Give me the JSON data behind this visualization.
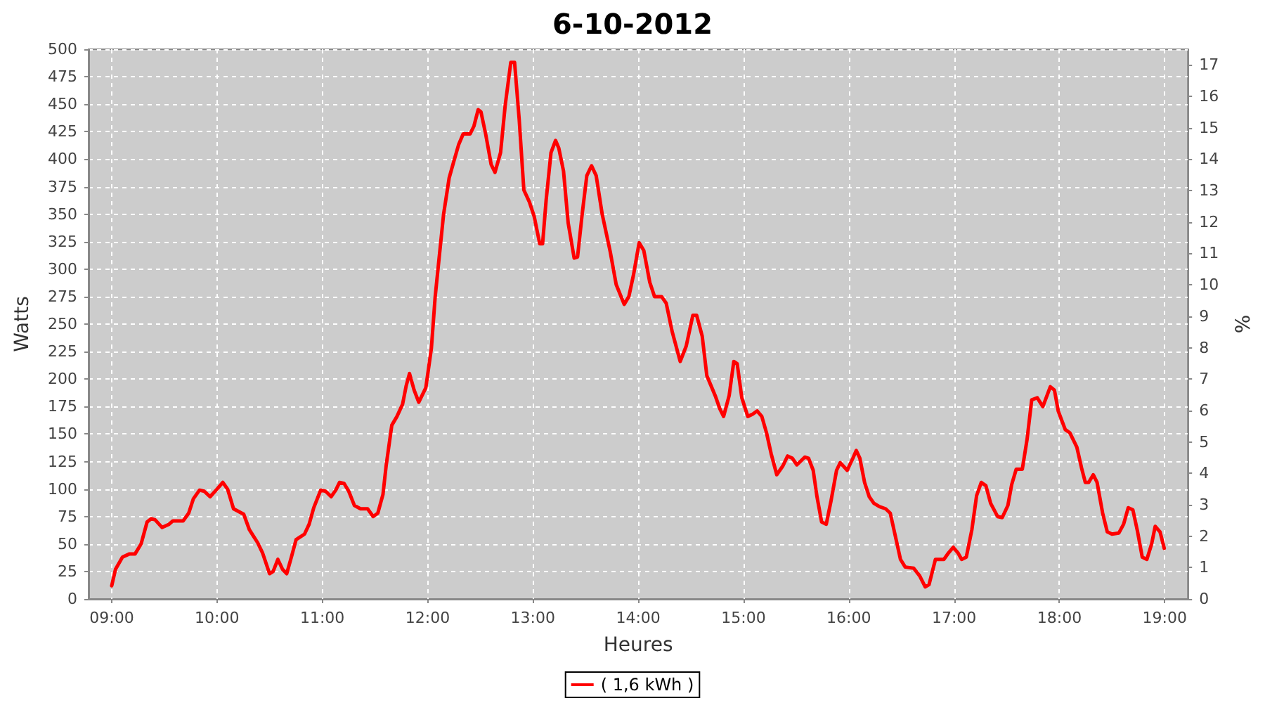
{
  "chart_data": {
    "type": "line",
    "title": "6-10-2012",
    "xlabel": "Heures",
    "ylabel": "Watts",
    "y2label": "%",
    "xlim": [
      8.78,
      19.22
    ],
    "xticks": [
      {
        "value": 9,
        "label": "09:00"
      },
      {
        "value": 10,
        "label": "10:00"
      },
      {
        "value": 11,
        "label": "11:00"
      },
      {
        "value": 12,
        "label": "12:00"
      },
      {
        "value": 13,
        "label": "13:00"
      },
      {
        "value": 14,
        "label": "14:00"
      },
      {
        "value": 15,
        "label": "15:00"
      },
      {
        "value": 16,
        "label": "16:00"
      },
      {
        "value": 17,
        "label": "17:00"
      },
      {
        "value": 18,
        "label": "18:00"
      },
      {
        "value": 19,
        "label": "19:00"
      }
    ],
    "ylim": [
      0,
      500
    ],
    "yticks": [
      0,
      25,
      50,
      75,
      100,
      125,
      150,
      175,
      200,
      225,
      250,
      275,
      300,
      325,
      350,
      375,
      400,
      425,
      450,
      475,
      500
    ],
    "y2lim": [
      0,
      17.5
    ],
    "y2ticks": [
      0,
      1,
      2,
      3,
      4,
      5,
      6,
      7,
      8,
      9,
      10,
      11,
      12,
      13,
      14,
      15,
      16,
      17
    ],
    "grid": true,
    "legend": "bottom",
    "marker": "none",
    "line_style": "solid",
    "series": [
      {
        "name": "( 1,6 kWh )",
        "color": "#ff0000",
        "x": [
          9.0,
          9.036,
          9.102,
          9.169,
          9.222,
          9.279,
          9.336,
          9.376,
          9.412,
          9.479,
          9.545,
          9.581,
          9.678,
          9.731,
          9.775,
          9.834,
          9.878,
          9.935,
          10.001,
          10.055,
          10.1,
          10.157,
          10.254,
          10.307,
          10.387,
          10.432,
          10.499,
          10.533,
          10.578,
          10.622,
          10.662,
          10.706,
          10.751,
          10.831,
          10.875,
          10.919,
          10.985,
          11.031,
          11.084,
          11.128,
          11.164,
          11.207,
          11.251,
          11.305,
          11.363,
          11.43,
          11.483,
          11.527,
          11.576,
          11.606,
          11.66,
          11.709,
          11.762,
          11.797,
          11.828,
          11.872,
          11.916,
          11.983,
          12.036,
          12.072,
          12.102,
          12.152,
          12.205,
          12.249,
          12.294,
          12.338,
          12.404,
          12.44,
          12.48,
          12.507,
          12.551,
          12.604,
          12.64,
          12.693,
          12.737,
          12.79,
          12.826,
          12.87,
          12.914,
          12.967,
          13.012,
          13.065,
          13.092,
          13.126,
          13.172,
          13.215,
          13.246,
          13.291,
          13.335,
          13.392,
          13.424,
          13.468,
          13.512,
          13.557,
          13.601,
          13.658,
          13.734,
          13.791,
          13.867,
          13.911,
          13.956,
          14.009,
          14.053,
          14.11,
          14.155,
          14.222,
          14.266,
          14.323,
          14.399,
          14.456,
          14.519,
          14.555,
          14.608,
          14.652,
          14.731,
          14.775,
          14.811,
          14.864,
          14.908,
          14.94,
          14.984,
          15.041,
          15.086,
          15.13,
          15.174,
          15.219,
          15.263,
          15.316,
          15.374,
          15.419,
          15.463,
          15.507,
          15.582,
          15.618,
          15.662,
          15.698,
          15.742,
          15.786,
          15.831,
          15.884,
          15.919,
          15.985,
          16.039,
          16.071,
          16.105,
          16.15,
          16.194,
          16.238,
          16.291,
          16.35,
          16.394,
          16.438,
          16.491,
          16.536,
          16.616,
          16.673,
          16.726,
          16.762,
          16.823,
          16.903,
          16.948,
          16.992,
          17.036,
          17.072,
          17.116,
          17.169,
          17.214,
          17.258,
          17.302,
          17.347,
          17.413,
          17.457,
          17.511,
          17.547,
          17.59,
          17.648,
          17.693,
          17.737,
          17.79,
          17.843,
          17.914,
          17.953,
          17.989,
          18.056,
          18.1,
          18.166,
          18.211,
          18.246,
          18.278,
          18.322,
          18.358,
          18.411,
          18.455,
          18.499,
          18.565,
          18.61,
          18.654,
          18.698,
          18.743,
          18.787,
          18.831,
          18.876,
          18.91,
          18.956,
          18.996
        ],
        "values": [
          12,
          27,
          38,
          41,
          41,
          50,
          70,
          73,
          72,
          65,
          68,
          71,
          71,
          78,
          91,
          99,
          98,
          93,
          100,
          106,
          100,
          82,
          77,
          63,
          51,
          42,
          23,
          25,
          36,
          27,
          23,
          38,
          54,
          59,
          68,
          83,
          99,
          98,
          93,
          99,
          106,
          105,
          98,
          85,
          82,
          82,
          75,
          78,
          95,
          121,
          158,
          166,
          177,
          194,
          205,
          190,
          179,
          192,
          228,
          275,
          303,
          350,
          383,
          398,
          413,
          423,
          423,
          430,
          445,
          443,
          423,
          395,
          388,
          406,
          449,
          488,
          488,
          436,
          372,
          361,
          348,
          323,
          323,
          363,
          406,
          417,
          410,
          389,
          342,
          310,
          311,
          350,
          385,
          394,
          385,
          350,
          316,
          286,
          268,
          275,
          295,
          324,
          317,
          288,
          275,
          275,
          269,
          243,
          216,
          230,
          258,
          258,
          239,
          203,
          185,
          173,
          166,
          185,
          216,
          214,
          183,
          166,
          168,
          171,
          166,
          151,
          132,
          113,
          121,
          130,
          128,
          122,
          129,
          128,
          117,
          93,
          70,
          68,
          89,
          117,
          124,
          117,
          128,
          135,
          128,
          106,
          93,
          87,
          84,
          82,
          78,
          59,
          36,
          29,
          28,
          21,
          11,
          13,
          36,
          36,
          42,
          47,
          42,
          36,
          38,
          63,
          94,
          106,
          103,
          87,
          75,
          74,
          85,
          104,
          118,
          118,
          145,
          181,
          183,
          175,
          193,
          190,
          171,
          154,
          151,
          138,
          119,
          106,
          106,
          113,
          106,
          78,
          61,
          59,
          60,
          68,
          83,
          81,
          61,
          38,
          36,
          50,
          66,
          61,
          46
        ]
      }
    ]
  }
}
